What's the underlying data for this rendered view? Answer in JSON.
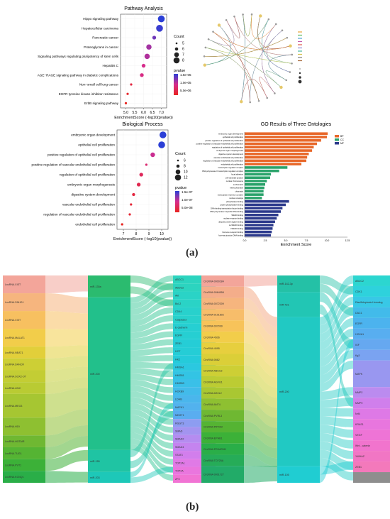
{
  "panel_labels": {
    "a": "(a)",
    "b": "(b)"
  },
  "chart_data": [
    {
      "type": "scatter",
      "title": "Pathway Analysis",
      "xlabel": "EnrichmentScore (-log10(pvalue))",
      "xticks": [
        "5.0",
        "5.5",
        "6.0",
        "6.5",
        "7.0"
      ],
      "xlim": [
        4.7,
        7.3
      ],
      "categories": [
        "Hippo signaling pathway",
        "Hepatocellular carcinoma",
        "Pancreatic cancer",
        "Proteoglycans in cancer",
        "Signaling pathways regulating pluripotency of stem cells",
        "Hepatitis C",
        "AGE−RAGE signaling pathway in diabetic complications",
        "Non−small cell lung cancer",
        "EGFR tyrosine kinase inhibitor resistance",
        "ErbB signaling pathway"
      ],
      "x": [
        7.0,
        6.9,
        6.6,
        6.3,
        6.2,
        6.0,
        5.9,
        5.3,
        5.1,
        5.0
      ],
      "count": [
        8,
        8,
        6,
        7,
        7,
        6,
        6,
        5,
        5,
        5
      ],
      "pvalue": [
        1e-07,
        1.2e-07,
        2.5e-07,
        5e-07,
        6e-07,
        1e-06,
        1.2e-06,
        5e-06,
        8e-06,
        1e-05
      ],
      "legend_count": {
        "title": "Count",
        "values": [
          "5",
          "6",
          "7",
          "8"
        ]
      },
      "legend_color": {
        "title": "pvalue",
        "ticks": [
          "1.5e-05",
          "1.0e-05",
          "5.0e-06"
        ],
        "colors": [
          "#2b3fd6",
          "#d62c8c",
          "#e8241f"
        ]
      }
    },
    {
      "type": "scatter",
      "title": "Biological Process",
      "xlabel": "EnrichmentScore (-log10(pvalue))",
      "xticks": [
        "7",
        "8",
        "9",
        "10"
      ],
      "xlim": [
        6.5,
        10.5
      ],
      "categories": [
        "embryonic organ development",
        "epithelial cell proliferation",
        "positive regulation of epithelial cell proliferation",
        "positive regulation of vascular endothelial cell proliferation",
        "regulation of epithelial cell proliferation",
        "embryonic organ morphogenesis",
        "digestive system development",
        "vascular endothelial cell proliferation",
        "regulation of vascular endothelial cell proliferation",
        "endothelial cell proliferation"
      ],
      "x": [
        10.1,
        10.0,
        9.3,
        8.8,
        8.4,
        8.2,
        7.8,
        7.6,
        7.5,
        6.9
      ],
      "count": [
        12,
        12,
        9,
        6,
        8,
        8,
        7,
        6,
        6,
        6
      ],
      "pvalue": [
        1e-10,
        1e-10,
        3e-09,
        1e-08,
        2e-08,
        3e-08,
        5e-08,
        7e-08,
        8e-08,
        1.5e-07
      ],
      "legend_count": {
        "title": "Count",
        "values": [
          "6",
          "8",
          "10",
          "12"
        ]
      },
      "legend_color": {
        "title": "pvalue",
        "ticks": [
          "1.5e-07",
          "1.0e-07",
          "5.0e-08"
        ],
        "colors": [
          "#2b3fd6",
          "#d62c8c",
          "#e8241f"
        ]
      }
    },
    {
      "type": "bar",
      "title": "GO Results of Three Ontologies",
      "xlabel": "Enrichment Score",
      "xticks": [
        "0.0",
        "2.5",
        "5.0",
        "7.5",
        "10.0",
        "12.5"
      ],
      "xlim": [
        0,
        12.5
      ],
      "legend": [
        "BP",
        "CC",
        "MF"
      ],
      "colors": {
        "BP": "#e8682a",
        "CC": "#2aa36b",
        "MF": "#2c3a8c"
      },
      "bars": [
        {
          "label": "embryonic organ development",
          "group": "BP",
          "value": 10.1
        },
        {
          "label": "epithelial cell proliferation",
          "group": "BP",
          "value": 10.0
        },
        {
          "label": "positive regulation of epithelial cell proliferation",
          "group": "BP",
          "value": 9.3
        },
        {
          "label": "positive regulation of vascular endothelial cell proliferation",
          "group": "BP",
          "value": 8.8
        },
        {
          "label": "regulation of epithelial cell proliferation",
          "group": "BP",
          "value": 8.4
        },
        {
          "label": "embryonic organ morphogenesis",
          "group": "BP",
          "value": 8.2
        },
        {
          "label": "digestive system development",
          "group": "BP",
          "value": 7.8
        },
        {
          "label": "vascular endothelial cell proliferation",
          "group": "BP",
          "value": 7.6
        },
        {
          "label": "regulation of vascular endothelial cell proliferation",
          "group": "BP",
          "value": 7.5
        },
        {
          "label": "endothelial cell proliferation",
          "group": "BP",
          "value": 6.9
        },
        {
          "label": "transcription regulator complex",
          "group": "CC",
          "value": 5.2
        },
        {
          "label": "RNA polymerase II transcription regulator complex",
          "group": "CC",
          "value": 4.2
        },
        {
          "label": "focal adhesion",
          "group": "CC",
          "value": 3.2
        },
        {
          "label": "cell-substrate junction",
          "group": "CC",
          "value": 3.1
        },
        {
          "label": "nuclear chromosome",
          "group": "CC",
          "value": 2.7
        },
        {
          "label": "euchromatin",
          "group": "CC",
          "value": 2.5
        },
        {
          "label": "heterochromatin",
          "group": "CC",
          "value": 2.4
        },
        {
          "label": "chromatin",
          "group": "CC",
          "value": 2.3
        },
        {
          "label": "transcription repressor complex",
          "group": "CC",
          "value": 2.3
        },
        {
          "label": "nuclear envelope",
          "group": "CC",
          "value": 2.1
        },
        {
          "label": "phosphatase binding",
          "group": "MF",
          "value": 5.4
        },
        {
          "label": "protein phosphatase binding",
          "group": "MF",
          "value": 5.0
        },
        {
          "label": "DNA-binding transcription factor binding",
          "group": "MF",
          "value": 4.6
        },
        {
          "label": "RNA polymerase II-specific DNA-binding",
          "group": "MF",
          "value": 4.4
        },
        {
          "label": "SMAD binding",
          "group": "MF",
          "value": 4.1
        },
        {
          "label": "nuclear receptor binding",
          "group": "MF",
          "value": 3.9
        },
        {
          "label": "ubiquitin protein ligase binding",
          "group": "MF",
          "value": 3.7
        },
        {
          "label": "co-SMAD binding",
          "group": "MF",
          "value": 3.5
        },
        {
          "label": "I-SMAD binding",
          "group": "MF",
          "value": 3.4
        },
        {
          "label": "hormone receptor binding",
          "group": "MF",
          "value": 3.3
        },
        {
          "label": "four-way junction DNA binding",
          "group": "MF",
          "value": 3.2
        }
      ]
    },
    {
      "type": "sankey",
      "nodes_left": [
        {
          "label": "LncRNA XIST",
          "color": "#f3a59a",
          "w": 3
        },
        {
          "label": "LncRNA SNHG1",
          "color": "#f6b57e",
          "w": 3
        },
        {
          "label": "LncRNA XIST",
          "color": "#f7c060",
          "w": 3
        },
        {
          "label": "LncRNA MALAT1",
          "color": "#f2cd4a",
          "w": 3
        },
        {
          "label": "LncRNA NEAT1",
          "color": "#e2cf3a",
          "w": 2
        },
        {
          "label": "LncRNA DANCR",
          "color": "#cdcf35",
          "w": 2
        },
        {
          "label": "LncRNA SOX2-OT",
          "color": "#c3cd34",
          "w": 2
        },
        {
          "label": "LncRNA LINC",
          "color": "#b9cb33",
          "w": 2
        },
        {
          "label": "LncRNA MEG3",
          "color": "#a6c632",
          "w": 4
        },
        {
          "label": "LncRNA H19",
          "color": "#8ec031",
          "w": 3
        },
        {
          "label": "LncRNA HOTAIR",
          "color": "#6fb832",
          "w": 2
        },
        {
          "label": "LncRNA TUG1",
          "color": "#55b433",
          "w": 2
        },
        {
          "label": "LncRNA PVT1",
          "color": "#3cb138",
          "w": 2
        },
        {
          "label": "LncRNA KCNQ1",
          "color": "#2aae48",
          "w": 2
        }
      ],
      "nodes_mid": [
        {
          "label": "miR-130a",
          "color": "#2bbb6f",
          "w": 2
        },
        {
          "label": "miR-200",
          "color": "#22c08b",
          "w": 14
        },
        {
          "label": "miR-155",
          "color": "#1fc4a3",
          "w": 2
        },
        {
          "label": "miR-203",
          "color": "#1dc8b8",
          "w": 1
        }
      ],
      "nodes_right": [
        {
          "label": "ABCC1",
          "color": "#2cd4bf"
        },
        {
          "label": "ABCG2",
          "color": "#2cd4bf"
        },
        {
          "label": "Akt",
          "color": "#2ad3c6"
        },
        {
          "label": "Bcl-2",
          "color": "#2ad3c6"
        },
        {
          "label": "CD44",
          "color": "#28d1cc"
        },
        {
          "label": "Caspase3",
          "color": "#28d1cc"
        },
        {
          "label": "E-cadherin",
          "color": "#26cfd2"
        },
        {
          "label": "EGFR",
          "color": "#26cfd2"
        },
        {
          "label": "ZEB1",
          "color": "#25cdd6"
        },
        {
          "label": "HCT",
          "color": "#25cdd6"
        },
        {
          "label": "HK2",
          "color": "#25cbda"
        },
        {
          "label": "HMGA1",
          "color": "#2bc8e0"
        },
        {
          "label": "HMGB1",
          "color": "#33c4e4"
        },
        {
          "label": "HMGB3",
          "color": "#3ac0e8"
        },
        {
          "label": "HOXB9",
          "color": "#42bbea"
        },
        {
          "label": "LDHB",
          "color": "#4ab6ec"
        },
        {
          "label": "MAPK1",
          "color": "#52b2ee"
        },
        {
          "label": "MDGT1",
          "color": "#5aadf0"
        },
        {
          "label": "RGGT3",
          "color": "#8d9df1"
        },
        {
          "label": "SMAD",
          "color": "#a394f0"
        },
        {
          "label": "SMAD2",
          "color": "#b58cf0"
        },
        {
          "label": "SMAD4",
          "color": "#c484ef"
        },
        {
          "label": "STAT3",
          "color": "#d27eec"
        },
        {
          "label": "TOP2A1",
          "color": "#e07ae6"
        },
        {
          "label": "TOP2A",
          "color": "#ea76de"
        },
        {
          "label": "ZFX",
          "color": "#f174d4"
        }
      ]
    },
    {
      "type": "sankey",
      "nodes_left": [
        {
          "label": "CircRNA 0000284",
          "color": "#f3a59a",
          "w": 2
        },
        {
          "label": "CircRNA 0064558",
          "color": "#f4ad8a",
          "w": 2
        },
        {
          "label": "CircRNA 0072309",
          "color": "#f6b57e",
          "w": 2
        },
        {
          "label": "CircRNA 0101802",
          "color": "#f7bd6a",
          "w": 2
        },
        {
          "label": "CircRNA 007099",
          "color": "#f7c35a",
          "w": 2
        },
        {
          "label": "CircRNA 4506",
          "color": "#f2cd4a",
          "w": 2
        },
        {
          "label": "CircRNA 4095",
          "color": "#e7cf3e",
          "w": 2
        },
        {
          "label": "CircRNA 0662",
          "color": "#dbcf38",
          "w": 2
        },
        {
          "label": "CircRNA ABCC2",
          "color": "#cdcf35",
          "w": 2
        },
        {
          "label": "CircRNA AGFG1",
          "color": "#bccc33",
          "w": 2
        },
        {
          "label": "CircRNA ASXL2",
          "color": "#a9c732",
          "w": 2
        },
        {
          "label": "CircRNA ANT4",
          "color": "#8ec031",
          "w": 2
        },
        {
          "label": "CircRNA PVRL3",
          "color": "#6fb832",
          "w": 2
        },
        {
          "label": "CircRNA PIP4K2",
          "color": "#55b433",
          "w": 2
        },
        {
          "label": "CircRNA EPHB1",
          "color": "#3cb138",
          "w": 2
        },
        {
          "label": "CircRNA PRKAR1B",
          "color": "#2aae48",
          "w": 2
        },
        {
          "label": "CircRNA TCF25A",
          "color": "#26ac58",
          "w": 2
        },
        {
          "label": "CircRNA 0001727",
          "color": "#22ab68",
          "w": 3
        }
      ],
      "nodes_mid": [
        {
          "label": "miR-142-3p",
          "color": "#24c1a6",
          "w": 2
        },
        {
          "label": "miR-421",
          "color": "#22c6b4",
          "w": 3
        },
        {
          "label": "miR-200",
          "color": "#21c9c3",
          "w": 18
        },
        {
          "label": "miR-105",
          "color": "#20cdd2",
          "w": 2
        }
      ],
      "nodes_right": [
        {
          "label": "ABCC2",
          "color": "#2cd6d0",
          "w": 2
        },
        {
          "label": "CDK1",
          "color": "#2ed2dc",
          "w": 2
        },
        {
          "label": "Disulfidoptosis Homolog",
          "color": "#38c8e6",
          "w": 2
        },
        {
          "label": "DAC1",
          "color": "#42bbea",
          "w": 2
        },
        {
          "label": "EGFR",
          "color": "#4cb3ee",
          "w": 2
        },
        {
          "label": "HOXA1",
          "color": "#58aef0",
          "w": 2
        },
        {
          "label": "IGF",
          "color": "#66a8f0",
          "w": 2
        },
        {
          "label": "Kg3",
          "color": "#7aa3f1",
          "w": 2
        },
        {
          "label": "MAPK",
          "color": "#9997f0",
          "w": 5
        },
        {
          "label": "MMP2",
          "color": "#bb8bef",
          "w": 2
        },
        {
          "label": "MMP9",
          "color": "#d07fec",
          "w": 2
        },
        {
          "label": "Nrf4",
          "color": "#de79e6",
          "w": 2
        },
        {
          "label": "KRAS1",
          "color": "#e876de",
          "w": 2
        },
        {
          "label": "VEGF",
          "color": "#ee74d6",
          "w": 2
        },
        {
          "label": "Wnt - catenin",
          "color": "#f174cd",
          "w": 2
        },
        {
          "label": "YWHAZ",
          "color": "#f176c4",
          "w": 2
        },
        {
          "label": "ZEB1",
          "color": "#f379bb",
          "w": 2
        },
        {
          "label": "",
          "color": "#8e8e8e",
          "w": 2
        }
      ]
    }
  ]
}
